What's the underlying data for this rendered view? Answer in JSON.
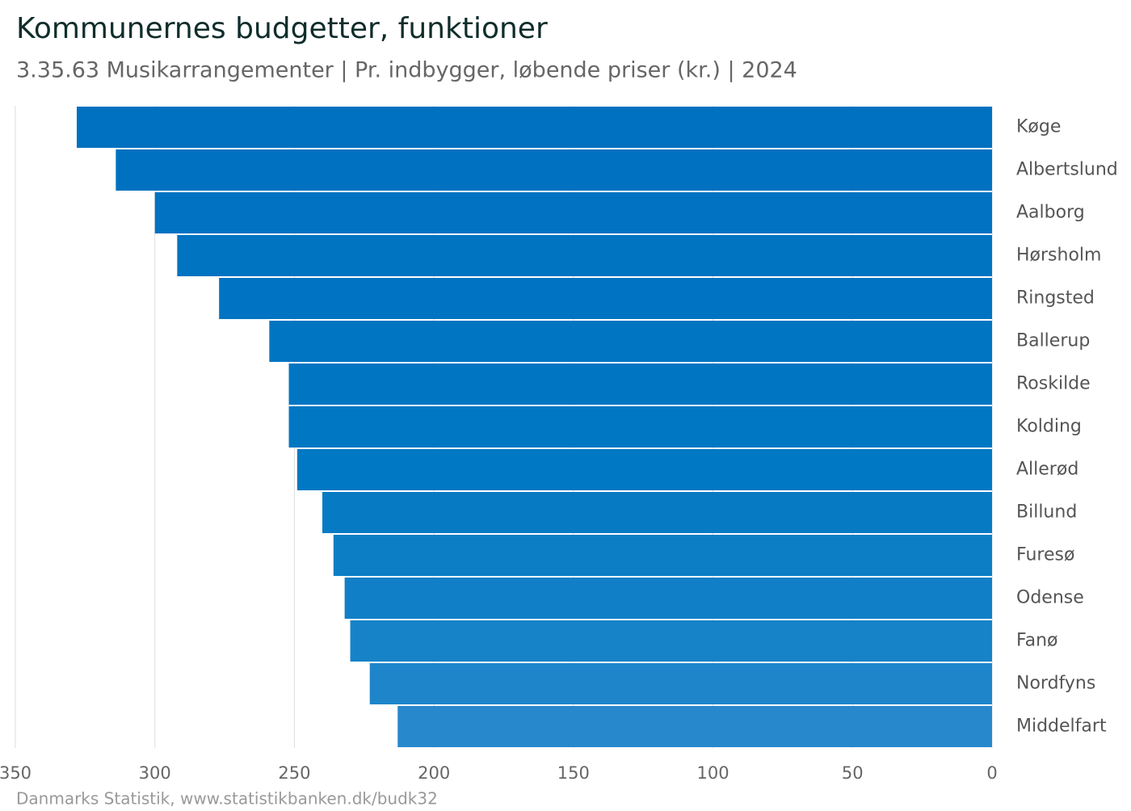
{
  "chart_data": {
    "type": "bar",
    "orientation": "horizontal",
    "title": "Kommunernes budgetter, funktioner",
    "subtitle": "3.35.63 Musikarrangementer | Pr. indbygger, løbende priser (kr.) | 2024",
    "source": "Danmarks Statistik, www.statistikbanken.dk/budk32",
    "categories": [
      "Køge",
      "Albertslund",
      "Aalborg",
      "Hørsholm",
      "Ringsted",
      "Ballerup",
      "Roskilde",
      "Kolding",
      "Allerød",
      "Billund",
      "Furesø",
      "Odense",
      "Fanø",
      "Nordfyns",
      "Middelfart"
    ],
    "values": [
      328,
      314,
      300,
      292,
      277,
      259,
      252,
      252,
      249,
      240,
      236,
      232,
      230,
      223,
      213
    ],
    "colors": [
      "#0070c0",
      "#0071c0",
      "#0072c1",
      "#0073c1",
      "#0074c2",
      "#0075c2",
      "#0076c3",
      "#0077c3",
      "#0178c3",
      "#067bc4",
      "#0b7ec6",
      "#117fc7",
      "#1682c8",
      "#1e85ca",
      "#2888cc"
    ],
    "xlim": [
      350,
      0
    ],
    "xticks": [
      350,
      300,
      250,
      200,
      150,
      100,
      50,
      0
    ],
    "grid": true
  }
}
